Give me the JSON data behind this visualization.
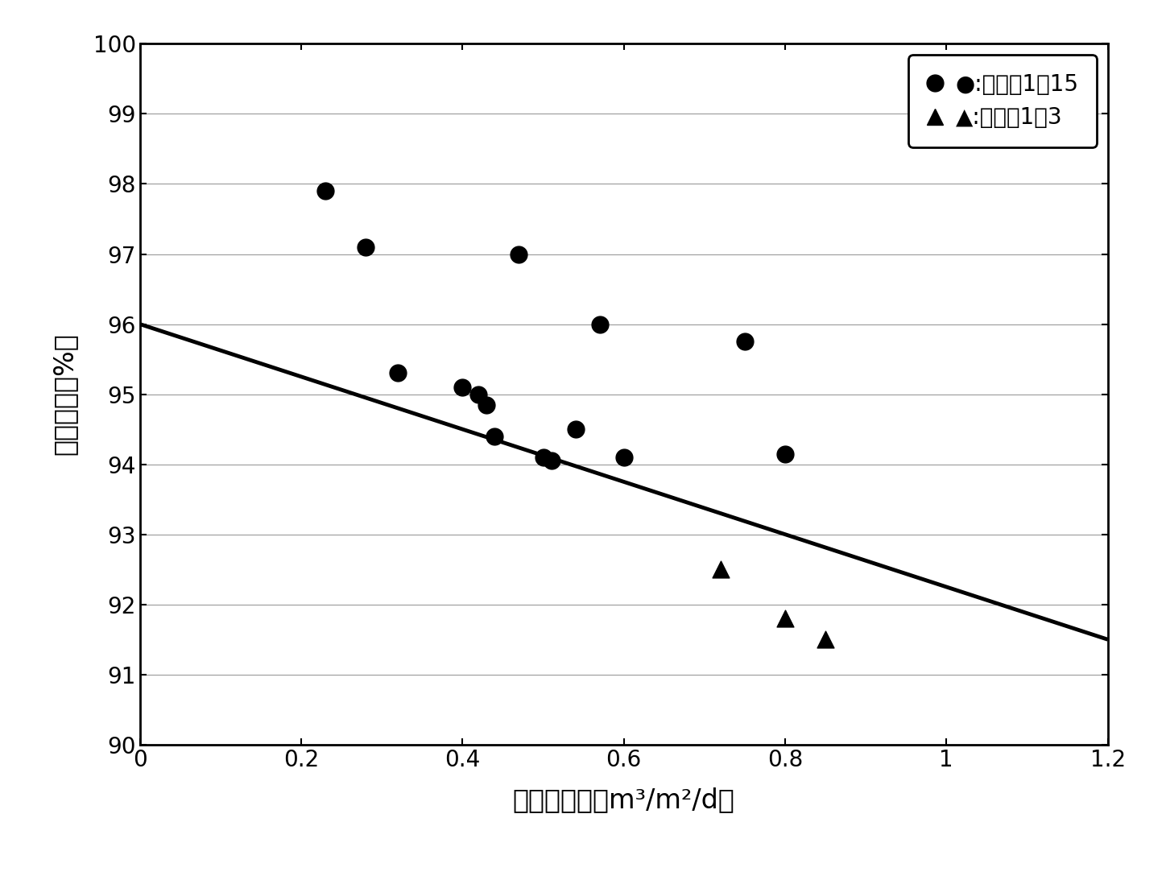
{
  "circle_points": [
    [
      0.23,
      97.9
    ],
    [
      0.28,
      97.1
    ],
    [
      0.32,
      95.3
    ],
    [
      0.4,
      95.1
    ],
    [
      0.42,
      95.0
    ],
    [
      0.43,
      94.85
    ],
    [
      0.44,
      94.4
    ],
    [
      0.47,
      97.0
    ],
    [
      0.5,
      94.1
    ],
    [
      0.51,
      94.05
    ],
    [
      0.54,
      94.5
    ],
    [
      0.57,
      96.0
    ],
    [
      0.6,
      94.1
    ],
    [
      0.75,
      95.75
    ],
    [
      0.8,
      94.15
    ]
  ],
  "triangle_points": [
    [
      0.72,
      92.5
    ],
    [
      0.8,
      91.8
    ],
    [
      0.85,
      91.5
    ]
  ],
  "line_x": [
    0.0,
    1.2
  ],
  "line_y": [
    96.0,
    91.5
  ],
  "xlabel": "膜滲透通量（m³/m²/d）",
  "ylabel": "硟除去率（%）",
  "legend_circle": "●:实施例1～15",
  "legend_triangle": "▲:比较例1～3",
  "xlim": [
    0,
    1.2
  ],
  "ylim": [
    90,
    100
  ],
  "xticks": [
    0,
    0.2,
    0.4,
    0.6,
    0.8,
    1.0,
    1.2
  ],
  "yticks": [
    90,
    91,
    92,
    93,
    94,
    95,
    96,
    97,
    98,
    99,
    100
  ],
  "axis_fontsize": 24,
  "tick_fontsize": 20,
  "legend_fontsize": 20,
  "marker_size": 15,
  "line_width": 3.5,
  "background_color": "#ffffff",
  "marker_color": "#000000",
  "line_color": "#000000",
  "grid_color": "#999999",
  "grid_linewidth": 0.8
}
